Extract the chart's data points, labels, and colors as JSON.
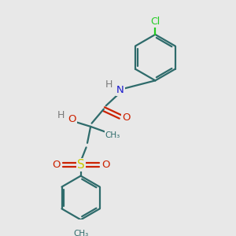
{
  "bg_color": "#e8e8e8",
  "atom_colors": {
    "C": "#2e6b6b",
    "H": "#7a7a7a",
    "N": "#1a1acc",
    "O": "#cc2200",
    "S": "#cccc00",
    "Cl": "#22cc22"
  },
  "bond_color": "#2e6b6b",
  "bond_width": 1.6,
  "figsize": [
    3.0,
    3.0
  ],
  "dpi": 100
}
